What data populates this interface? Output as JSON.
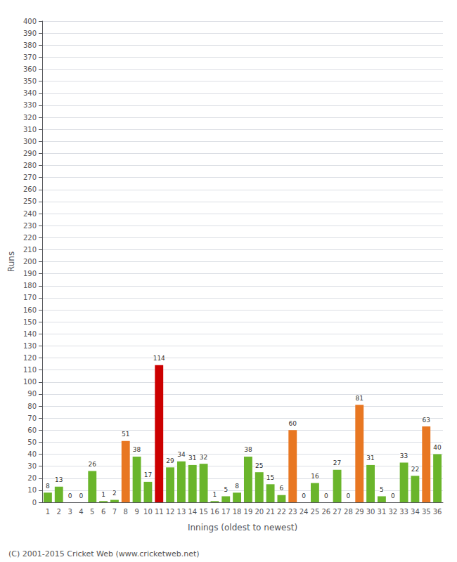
{
  "chart_data": {
    "type": "bar",
    "xlabel": "Innings (oldest to newest)",
    "ylabel": "Runs",
    "categories": [
      "1",
      "2",
      "3",
      "4",
      "5",
      "6",
      "7",
      "8",
      "9",
      "10",
      "11",
      "12",
      "13",
      "14",
      "15",
      "16",
      "17",
      "18",
      "19",
      "20",
      "21",
      "22",
      "23",
      "24",
      "25",
      "26",
      "27",
      "28",
      "29",
      "30",
      "31",
      "32",
      "33",
      "34",
      "35",
      "36"
    ],
    "values": [
      8,
      13,
      0,
      0,
      26,
      1,
      2,
      51,
      38,
      17,
      114,
      29,
      34,
      31,
      32,
      1,
      5,
      8,
      38,
      25,
      15,
      6,
      60,
      0,
      16,
      0,
      27,
      0,
      81,
      31,
      5,
      0,
      33,
      22,
      63,
      40
    ],
    "colors": [
      "#6ab52b",
      "#6ab52b",
      "#6ab52b",
      "#6ab52b",
      "#6ab52b",
      "#6ab52b",
      "#6ab52b",
      "#e87722",
      "#6ab52b",
      "#6ab52b",
      "#cc0000",
      "#6ab52b",
      "#6ab52b",
      "#6ab52b",
      "#6ab52b",
      "#6ab52b",
      "#6ab52b",
      "#6ab52b",
      "#6ab52b",
      "#6ab52b",
      "#6ab52b",
      "#6ab52b",
      "#e87722",
      "#6ab52b",
      "#6ab52b",
      "#6ab52b",
      "#6ab52b",
      "#6ab52b",
      "#e87722",
      "#6ab52b",
      "#6ab52b",
      "#6ab52b",
      "#6ab52b",
      "#6ab52b",
      "#e87722",
      "#6ab52b"
    ],
    "ylim": [
      0,
      400
    ],
    "yticks": [
      0,
      10,
      20,
      30,
      40,
      50,
      60,
      70,
      80,
      90,
      100,
      110,
      120,
      130,
      140,
      150,
      160,
      170,
      180,
      190,
      200,
      210,
      220,
      230,
      240,
      250,
      260,
      270,
      280,
      290,
      300,
      310,
      320,
      330,
      340,
      350,
      360,
      370,
      380,
      390,
      400
    ],
    "grid": true,
    "data_labels": true,
    "annotations": [
      "(C) 2001-2015 Cricket Web (www.cricketweb.net)"
    ]
  }
}
